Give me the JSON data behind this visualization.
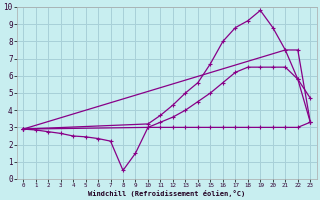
{
  "bg_color": "#c8eef0",
  "grid_color": "#a8d0d8",
  "line_color": "#880088",
  "xlim": [
    -0.5,
    23.5
  ],
  "ylim": [
    0,
    10
  ],
  "xlabel": "Windchill (Refroidissement éolien,°C)",
  "xticks": [
    0,
    1,
    2,
    3,
    4,
    5,
    6,
    7,
    8,
    9,
    10,
    11,
    12,
    13,
    14,
    15,
    16,
    17,
    18,
    19,
    20,
    21,
    22,
    23
  ],
  "yticks": [
    0,
    1,
    2,
    3,
    4,
    5,
    6,
    7,
    8,
    9,
    10
  ],
  "line1_x": [
    0,
    1,
    2,
    3,
    4,
    5,
    6,
    7,
    8,
    9,
    10,
    11,
    12,
    13,
    14,
    15,
    16,
    17,
    18,
    19,
    20,
    21,
    22,
    23
  ],
  "line1_y": [
    2.9,
    2.85,
    2.75,
    2.65,
    2.5,
    2.45,
    2.35,
    2.2,
    0.5,
    1.5,
    3.0,
    3.0,
    3.0,
    3.0,
    3.0,
    3.0,
    3.0,
    3.0,
    3.0,
    3.0,
    3.0,
    3.0,
    3.0,
    3.3
  ],
  "line2_x": [
    0,
    10,
    11,
    12,
    13,
    14,
    15,
    16,
    17,
    18,
    19,
    20,
    21,
    22,
    23
  ],
  "line2_y": [
    2.9,
    3.2,
    3.7,
    4.3,
    5.0,
    5.6,
    6.7,
    8.0,
    8.8,
    9.2,
    9.8,
    8.8,
    7.5,
    5.8,
    4.7
  ],
  "line3_x": [
    0,
    10,
    11,
    12,
    13,
    14,
    15,
    16,
    17,
    18,
    19,
    20,
    21,
    22,
    23
  ],
  "line3_y": [
    2.9,
    3.0,
    3.3,
    3.6,
    4.0,
    4.5,
    5.0,
    5.6,
    6.2,
    6.5,
    6.5,
    6.5,
    6.5,
    5.8,
    3.3
  ],
  "line4_x": [
    0,
    21,
    22,
    23
  ],
  "line4_y": [
    2.9,
    7.5,
    7.5,
    3.3
  ]
}
